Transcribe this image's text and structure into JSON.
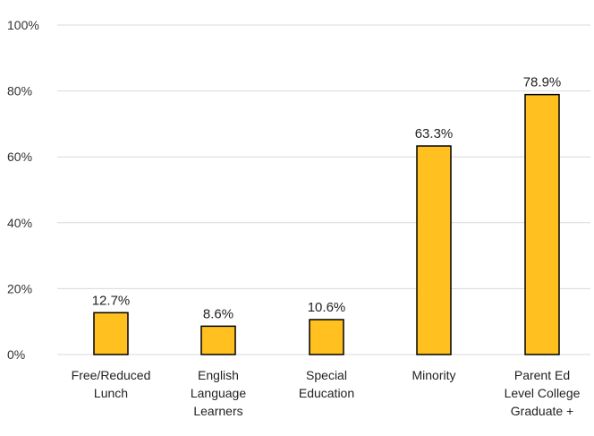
{
  "chart_data": {
    "type": "bar",
    "categories": [
      [
        "Free/Reduced",
        "Lunch"
      ],
      [
        "English",
        "Language",
        "Learners"
      ],
      [
        "Special",
        "Education"
      ],
      [
        "Minority"
      ],
      [
        "Parent Ed",
        "Level College",
        "Graduate +"
      ]
    ],
    "values": [
      12.7,
      8.6,
      10.6,
      63.3,
      78.9
    ],
    "data_labels": [
      "12.7%",
      "8.6%",
      "10.6%",
      "63.3%",
      "78.9%"
    ],
    "ylim": [
      0,
      100
    ],
    "yticks": [
      0,
      20,
      40,
      60,
      80,
      100
    ],
    "ytick_labels": [
      "0%",
      "20%",
      "40%",
      "60%",
      "80%",
      "100%"
    ],
    "grid": true,
    "legend": "none",
    "colors": {
      "bar_fill": "#FFC020",
      "bar_stroke": "#000000",
      "grid": "#d9d9d9"
    }
  }
}
